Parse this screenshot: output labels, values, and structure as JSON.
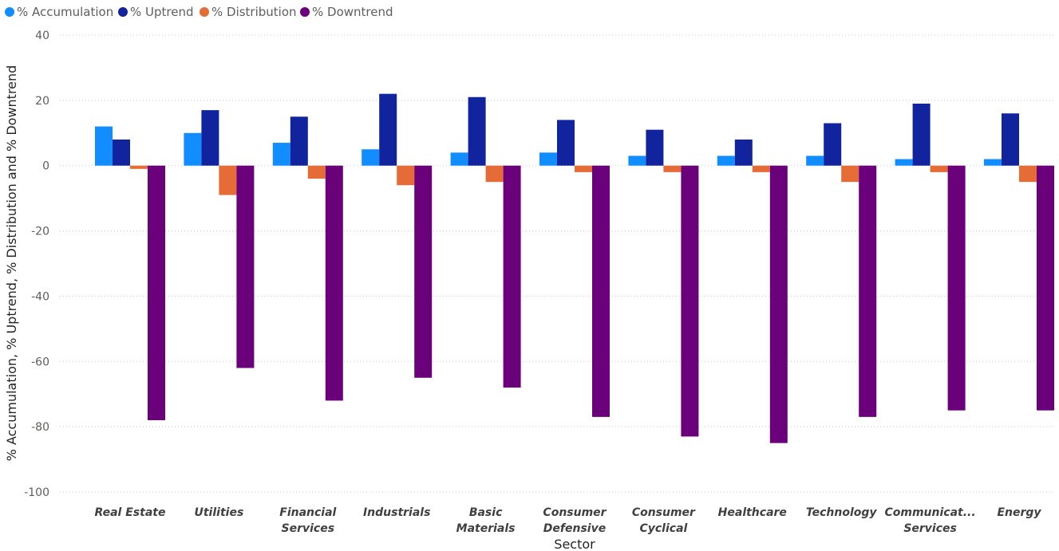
{
  "chart_data": {
    "type": "bar",
    "xlabel": "Sector",
    "ylabel": "% Accumulation, % Uptrend, % Distribution and % Downtrend",
    "ylim": [
      -100,
      40
    ],
    "yticks": [
      "40",
      "20",
      "0",
      "-20",
      "-40",
      "-60",
      "-80",
      "-100"
    ],
    "ytick_values": [
      40,
      20,
      0,
      -20,
      -40,
      -60,
      -80,
      -100
    ],
    "grid": true,
    "legend_position": "top-left",
    "categories": [
      [
        "Real Estate"
      ],
      [
        "Utilities"
      ],
      [
        "Financial",
        "Services"
      ],
      [
        "Industrials"
      ],
      [
        "Basic",
        "Materials"
      ],
      [
        "Consumer",
        "Defensive"
      ],
      [
        "Consumer",
        "Cyclical"
      ],
      [
        "Healthcare"
      ],
      [
        "Technology"
      ],
      [
        "Communicat...",
        "Services"
      ],
      [
        "Energy"
      ]
    ],
    "series": [
      {
        "name": "% Accumulation",
        "color": "#118dff",
        "values": [
          12,
          10,
          7,
          5,
          4,
          4,
          3,
          3,
          3,
          2,
          2
        ]
      },
      {
        "name": "% Uptrend",
        "color": "#12239e",
        "values": [
          8,
          17,
          15,
          22,
          21,
          14,
          11,
          8,
          13,
          19,
          16
        ]
      },
      {
        "name": "% Distribution",
        "color": "#e66c37",
        "values": [
          -1,
          -9,
          -4,
          -6,
          -5,
          -2,
          -2,
          -2,
          -5,
          -2,
          -5
        ]
      },
      {
        "name": "% Downtrend",
        "color": "#6b007b",
        "values": [
          -78,
          -62,
          -72,
          -65,
          -68,
          -77,
          -83,
          -85,
          -77,
          -75,
          -75
        ]
      }
    ]
  }
}
